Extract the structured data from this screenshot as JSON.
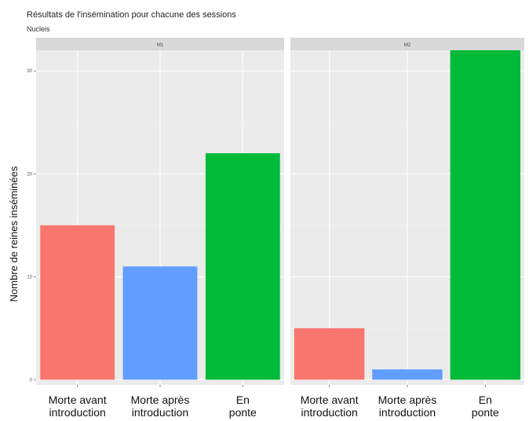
{
  "chart_data": {
    "type": "bar",
    "title": "Résultats de l'insémination pour chacune des sessions",
    "subtitle": "Nucleis",
    "ylabel": "Nombre de reines inséminées",
    "xlabel": "",
    "ylim": [
      -0.5,
      32
    ],
    "yticks": [
      0,
      10,
      20,
      30
    ],
    "ytick_labels": [
      "0",
      "10",
      "20",
      "30"
    ],
    "grid": true,
    "legend": "none",
    "categories": [
      [
        "Morte avant",
        "introduction"
      ],
      [
        "Morte après",
        "introduction"
      ],
      [
        "En",
        "ponte"
      ]
    ],
    "colors": [
      "#f8766d",
      "#619cff",
      "#00ba38"
    ],
    "panels": [
      {
        "name": "M1",
        "values": [
          15,
          11,
          22
        ]
      },
      {
        "name": "M2",
        "values": [
          5,
          1,
          32
        ]
      }
    ]
  }
}
